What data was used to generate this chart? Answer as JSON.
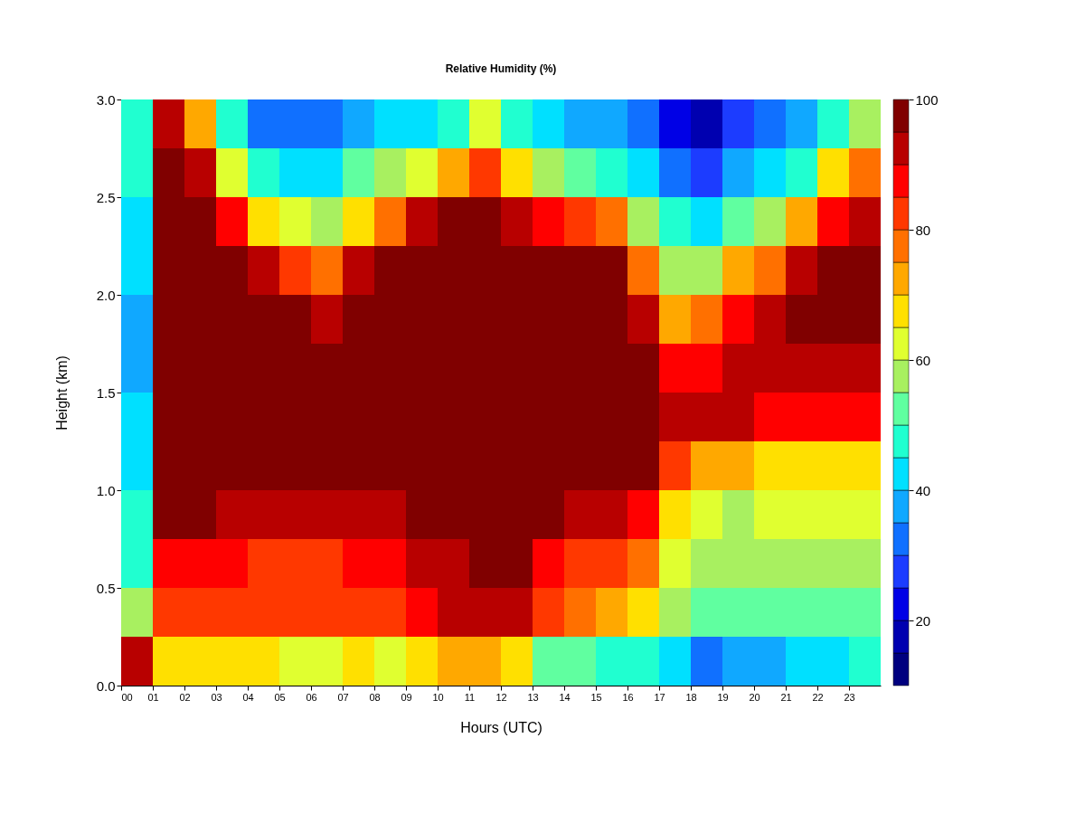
{
  "chart_data": {
    "type": "heatmap",
    "title": "Relative Humidity (%)",
    "xlabel": "Hours (UTC)",
    "ylabel": "Height (km)",
    "x": [
      0.5,
      1.5,
      2.5,
      3.5,
      4.5,
      5.5,
      6.5,
      7.5,
      8.5,
      9.5,
      10.5,
      11.5,
      12.5,
      13.5,
      14.5,
      15.5,
      16.5,
      17.5,
      18.5,
      19.5,
      20.5,
      21.5,
      22.5,
      23.5
    ],
    "cells": [
      [
        48,
        90,
        72,
        45,
        32,
        30,
        30,
        38,
        40,
        42,
        45,
        60,
        45,
        42,
        38,
        35,
        32,
        22,
        18,
        28,
        32,
        38,
        45,
        55
      ],
      [
        45,
        97,
        90,
        62,
        45,
        42,
        42,
        52,
        55,
        62,
        70,
        82,
        65,
        58,
        50,
        48,
        42,
        32,
        28,
        38,
        42,
        48,
        65,
        75
      ],
      [
        42,
        100,
        100,
        88,
        65,
        60,
        58,
        68,
        75,
        90,
        95,
        97,
        90,
        88,
        80,
        75,
        58,
        45,
        40,
        52,
        55,
        70,
        88,
        92
      ],
      [
        42,
        100,
        100,
        100,
        90,
        80,
        75,
        90,
        95,
        100,
        100,
        100,
        100,
        100,
        97,
        95,
        75,
        55,
        58,
        72,
        78,
        90,
        95,
        95
      ],
      [
        38,
        100,
        100,
        100,
        100,
        97,
        92,
        100,
        100,
        100,
        100,
        100,
        100,
        100,
        100,
        100,
        92,
        70,
        78,
        85,
        90,
        95,
        95,
        95
      ],
      [
        38,
        100,
        100,
        100,
        100,
        100,
        100,
        100,
        100,
        100,
        100,
        100,
        100,
        100,
        100,
        100,
        100,
        85,
        88,
        90,
        92,
        92,
        92,
        92
      ],
      [
        40,
        100,
        100,
        100,
        100,
        100,
        100,
        100,
        100,
        100,
        100,
        100,
        100,
        100,
        100,
        100,
        100,
        90,
        90,
        90,
        88,
        88,
        85,
        85
      ],
      [
        42,
        100,
        100,
        97,
        100,
        98,
        98,
        100,
        100,
        100,
        100,
        100,
        100,
        100,
        100,
        98,
        97,
        80,
        72,
        70,
        68,
        68,
        68,
        68
      ],
      [
        45,
        97,
        95,
        92,
        92,
        90,
        90,
        92,
        92,
        95,
        97,
        100,
        100,
        97,
        92,
        90,
        85,
        65,
        60,
        58,
        60,
        60,
        62,
        62
      ],
      [
        45,
        88,
        87,
        85,
        82,
        83,
        82,
        85,
        85,
        90,
        92,
        95,
        95,
        88,
        82,
        80,
        75,
        60,
        55,
        55,
        55,
        55,
        55,
        58
      ],
      [
        55,
        82,
        82,
        82,
        80,
        80,
        80,
        80,
        80,
        88,
        90,
        92,
        90,
        80,
        75,
        72,
        68,
        58,
        52,
        52,
        52,
        52,
        50,
        52
      ],
      [
        92,
        68,
        65,
        68,
        65,
        62,
        62,
        65,
        62,
        68,
        72,
        72,
        68,
        52,
        50,
        48,
        48,
        40,
        32,
        35,
        35,
        40,
        42,
        45
      ]
    ],
    "clim": [
      10,
      100
    ],
    "cticks": [
      20,
      40,
      60,
      80,
      100
    ],
    "colors": [
      "#00007f",
      "#0000b0",
      "#0000e6",
      "#1c3cff",
      "#1070ff",
      "#10a8ff",
      "#00e0ff",
      "#20ffd0",
      "#60ffa0",
      "#a8f060",
      "#e0ff30",
      "#ffe000",
      "#ffa800",
      "#ff7000",
      "#ff3800",
      "#ff0000",
      "#b80000",
      "#800000"
    ],
    "xlim": [
      0,
      24
    ],
    "xticks": [
      {
        "value": 0,
        "label": "00"
      },
      {
        "value": 1,
        "label": "01"
      },
      {
        "value": 2,
        "label": "02"
      },
      {
        "value": 3,
        "label": "03"
      },
      {
        "value": 4,
        "label": "04"
      },
      {
        "value": 5,
        "label": "05"
      },
      {
        "value": 6,
        "label": "06"
      },
      {
        "value": 7,
        "label": "07"
      },
      {
        "value": 8,
        "label": "08"
      },
      {
        "value": 9,
        "label": "09"
      },
      {
        "value": 10,
        "label": "10"
      },
      {
        "value": 11,
        "label": "11"
      },
      {
        "value": 12,
        "label": "12"
      },
      {
        "value": 13,
        "label": "13"
      },
      {
        "value": 14,
        "label": "14"
      },
      {
        "value": 15,
        "label": "15"
      },
      {
        "value": 16,
        "label": "16"
      },
      {
        "value": 17,
        "label": "17"
      },
      {
        "value": 18,
        "label": "18"
      },
      {
        "value": 19,
        "label": "19"
      },
      {
        "value": 20,
        "label": "20"
      },
      {
        "value": 21,
        "label": "21"
      },
      {
        "value": 22,
        "label": "22"
      },
      {
        "value": 23,
        "label": "23"
      }
    ],
    "ylim": [
      0,
      3
    ],
    "yticks": [
      {
        "value": 0,
        "label": "0.0"
      },
      {
        "value": 0.5,
        "label": "0.5"
      },
      {
        "value": 1,
        "label": "1.0"
      },
      {
        "value": 1.5,
        "label": "1.5"
      },
      {
        "value": 2,
        "label": "2.0"
      },
      {
        "value": 2.5,
        "label": "2.5"
      },
      {
        "value": 3,
        "label": "3.0"
      }
    ]
  }
}
